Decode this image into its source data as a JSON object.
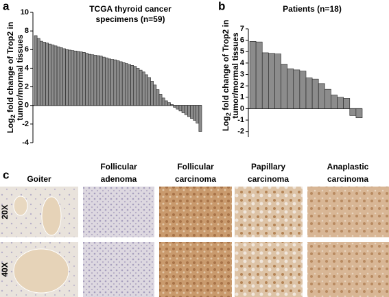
{
  "chart_data": [
    {
      "type": "bar",
      "panel": "a",
      "title": [
        "TCGA thyroid cancer",
        "specimens (n=59)"
      ],
      "ylabel": {
        "prefix": "Log",
        "sub": "2",
        "lines": [
          " fold change of  Trop2 in",
          "tumor/mormal tissues"
        ]
      },
      "values": [
        7.5,
        7.2,
        6.9,
        6.8,
        6.7,
        6.6,
        6.5,
        6.4,
        6.3,
        6.2,
        6.1,
        6.0,
        5.95,
        5.9,
        5.85,
        5.8,
        5.75,
        5.7,
        5.6,
        5.5,
        5.45,
        5.4,
        5.35,
        5.3,
        5.2,
        5.1,
        5.0,
        4.95,
        4.9,
        4.8,
        4.7,
        4.6,
        4.5,
        4.4,
        4.3,
        4.2,
        4.0,
        3.8,
        3.6,
        3.3,
        3.0,
        2.6,
        2.2,
        1.7,
        1.2,
        0.8,
        0.5,
        0.3,
        0.1,
        -0.2,
        -0.4,
        -0.6,
        -0.8,
        -1.0,
        -1.2,
        -1.4,
        -1.6,
        -1.9,
        -2.8
      ],
      "color": "#8c8c8c",
      "ylim": [
        -4,
        10
      ],
      "yticks": [
        -4,
        -2,
        0,
        2,
        4,
        6,
        8,
        10
      ]
    },
    {
      "type": "bar",
      "panel": "b",
      "title": [
        "Patients (n=18)"
      ],
      "ylabel": {
        "prefix": "Log",
        "sub": "2",
        "lines": [
          " fold change of Trop2 in",
          "tumor/mormal tissues"
        ]
      },
      "values": [
        5.9,
        5.85,
        4.9,
        4.85,
        4.8,
        3.9,
        3.5,
        3.4,
        3.3,
        2.7,
        2.6,
        2.2,
        1.7,
        1.2,
        1.0,
        0.9,
        -0.6,
        -0.8
      ],
      "color": "#8c8c8c",
      "ylim": [
        -2.5,
        7
      ],
      "yticks": [
        -2,
        -1,
        0,
        1,
        2,
        3,
        4,
        5,
        6,
        7
      ]
    }
  ],
  "panel_c": {
    "panel": "c",
    "columns": [
      [
        "Goiter"
      ],
      [
        "Follicular",
        "adenoma"
      ],
      [
        "Follicular",
        "carcinoma"
      ],
      [
        "Papillary",
        "carcinoma"
      ],
      [
        "Anaplastic",
        "carcinoma"
      ]
    ],
    "rows": [
      "20X",
      "40X"
    ]
  }
}
